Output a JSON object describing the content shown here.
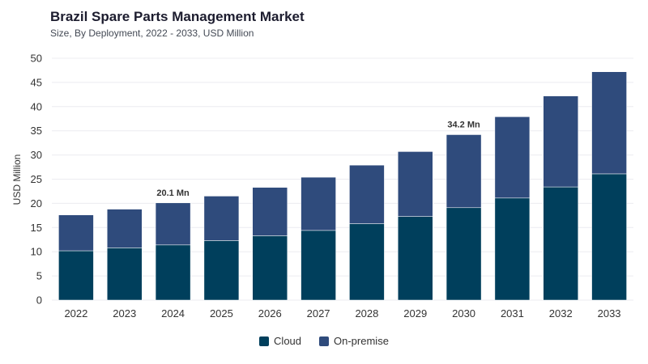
{
  "header": {
    "title": "Brazil Spare Parts Management Market",
    "subtitle": "Size, By Deployment, 2022 - 2033, USD Million"
  },
  "colors": {
    "cloud": "#003f5c",
    "onpremise": "#2f4b7c"
  },
  "chart_data": {
    "type": "bar",
    "stacked": true,
    "title": "Brazil Spare Parts Management Market",
    "subtitle": "Size, By Deployment, 2022 - 2033, USD Million",
    "xlabel": "",
    "ylabel": "USD Million",
    "ylim": [
      0,
      50
    ],
    "yticks": [
      0,
      5,
      10,
      15,
      20,
      25,
      30,
      35,
      40,
      45,
      50
    ],
    "grid": true,
    "legend_position": "bottom",
    "categories": [
      "2022",
      "2023",
      "2024",
      "2025",
      "2026",
      "2027",
      "2028",
      "2029",
      "2030",
      "2031",
      "2032",
      "2033"
    ],
    "series": [
      {
        "name": "Cloud",
        "values": [
          10.2,
          10.8,
          11.4,
          12.3,
          13.3,
          14.4,
          15.8,
          17.3,
          19.1,
          21.1,
          23.4,
          26.1
        ]
      },
      {
        "name": "On-premise",
        "values": [
          7.4,
          8.0,
          8.7,
          9.2,
          10.0,
          11.0,
          12.1,
          13.4,
          15.1,
          16.8,
          18.8,
          21.1
        ]
      }
    ],
    "annotations": [
      {
        "category": "2024",
        "label": "20.1 Mn"
      },
      {
        "category": "2030",
        "label": "34.2 Mn"
      }
    ]
  }
}
